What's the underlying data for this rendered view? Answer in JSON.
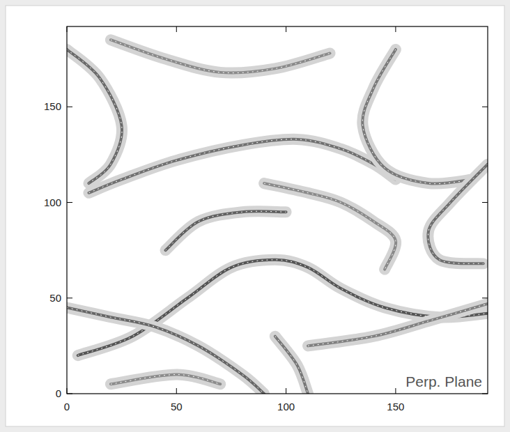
{
  "chart_data": {
    "type": "line",
    "annotation": "Perp. Plane",
    "xlim": [
      0,
      192
    ],
    "ylim": [
      0,
      192
    ],
    "xticks": [
      0,
      50,
      100,
      150
    ],
    "yticks": [
      0,
      50,
      100,
      150
    ],
    "series": [
      {
        "color": "#555555",
        "x": [
          5,
          30,
          55,
          75,
          95,
          110,
          125,
          145,
          170,
          192
        ],
        "values": [
          20,
          30,
          50,
          66,
          70,
          66,
          55,
          45,
          40,
          42
        ]
      },
      {
        "color": "#707070",
        "x": [
          10,
          25,
          50,
          80,
          105,
          125,
          140,
          150
        ],
        "values": [
          105,
          112,
          122,
          130,
          133,
          128,
          120,
          112
        ]
      },
      {
        "color": "#8a8a8a",
        "x": [
          20,
          45,
          70,
          95,
          120
        ],
        "values": [
          185,
          175,
          168,
          170,
          178
        ]
      },
      {
        "color": "#6a6a6a",
        "x": [
          0,
          15,
          25,
          20,
          10
        ],
        "values": [
          180,
          165,
          140,
          120,
          110
        ]
      },
      {
        "color": "#606060",
        "x": [
          45,
          60,
          80,
          100
        ],
        "values": [
          75,
          90,
          95,
          95
        ]
      },
      {
        "color": "#7a7a7a",
        "x": [
          150,
          140,
          135,
          145,
          165,
          185
        ],
        "values": [
          180,
          160,
          140,
          118,
          110,
          112
        ]
      },
      {
        "color": "#6e6e6e",
        "x": [
          192,
          175,
          165,
          170,
          190
        ],
        "values": [
          120,
          100,
          85,
          70,
          68
        ]
      },
      {
        "color": "#808080",
        "x": [
          110,
          140,
          165,
          192
        ],
        "values": [
          25,
          30,
          38,
          47
        ]
      },
      {
        "color": "#8c8c8c",
        "x": [
          20,
          50,
          70
        ],
        "values": [
          5,
          10,
          5
        ]
      },
      {
        "color": "#777777",
        "x": [
          95,
          105,
          110
        ],
        "values": [
          30,
          15,
          0
        ]
      },
      {
        "color": "#8a8a8a",
        "x": [
          90,
          110,
          125,
          140,
          150,
          145
        ],
        "values": [
          110,
          105,
          100,
          90,
          80,
          65
        ]
      },
      {
        "color": "#666666",
        "x": [
          0,
          20,
          40,
          60,
          80,
          90
        ],
        "values": [
          45,
          40,
          35,
          25,
          10,
          0
        ]
      }
    ]
  }
}
